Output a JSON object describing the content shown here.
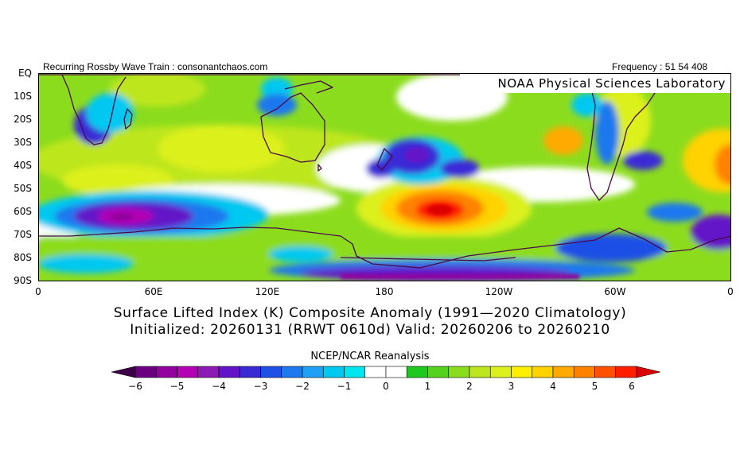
{
  "header": {
    "left_label": "Recurring Rossby Wave Train : consonantchaos.com",
    "right_label": "Frequency : 51 54 408",
    "lab_label": "NOAA Physical Sciences Laboratory"
  },
  "map": {
    "projection": "equirectangular, southern hemisphere, 0°E to 360°E",
    "latitude_labels": [
      "EQ",
      "10S",
      "20S",
      "30S",
      "40S",
      "50S",
      "60S",
      "70S",
      "80S",
      "90S"
    ],
    "longitude_labels": [
      "0",
      "60E",
      "120E",
      "180",
      "120W",
      "60W",
      "0"
    ],
    "anomaly_features": [
      {
        "name": "strong-positive-southeast-pacific",
        "lon": 200,
        "lat": -59,
        "value": 6
      },
      {
        "name": "negative-south-indian-ocean",
        "lon": 55,
        "lat": -62,
        "value": -5
      },
      {
        "name": "negative-southwest-pacific",
        "lon": 195,
        "lat": -38,
        "value": -3
      },
      {
        "name": "negative-ross-sea-coast",
        "lon": 210,
        "lat": -86,
        "value": -4
      },
      {
        "name": "negative-weddell-sea",
        "lon": 355,
        "lat": -70,
        "value": -4
      },
      {
        "name": "negative-south-atlantic",
        "lon": 300,
        "lat": -40,
        "value": -3
      },
      {
        "name": "positive-australia",
        "lon": 120,
        "lat": -28,
        "value": 2
      },
      {
        "name": "positive-south-america",
        "lon": 300,
        "lat": -22,
        "value": 3
      }
    ]
  },
  "titles": {
    "line1": "Surface Lifted Index (K) Composite Anomaly (1991—2020 Climatology)",
    "line2": "Initialized: 20260131 (RRWT 0610d) Valid: 20260206 to 20260210",
    "source": "NCEP/NCAR Reanalysis"
  },
  "colorbar": {
    "labels": [
      "−6",
      "−5",
      "−4",
      "−3",
      "−2",
      "−1",
      "0",
      "1",
      "2",
      "3",
      "4",
      "5",
      "6"
    ],
    "colors": [
      "#3d0047",
      "#6a0080",
      "#92009e",
      "#b400b4",
      "#8c1ab4",
      "#6414c8",
      "#3a2ad6",
      "#1e50e6",
      "#1e78ee",
      "#1ea0f4",
      "#00c8f0",
      "#00e6f0",
      "#ffffff",
      "#ffffff",
      "#1ec81e",
      "#56d21e",
      "#8cdc1e",
      "#bee61e",
      "#dcf01e",
      "#fff000",
      "#ffd200",
      "#ffaa00",
      "#ff8200",
      "#ff5000",
      "#ff1e00",
      "#dc0000"
    ]
  }
}
